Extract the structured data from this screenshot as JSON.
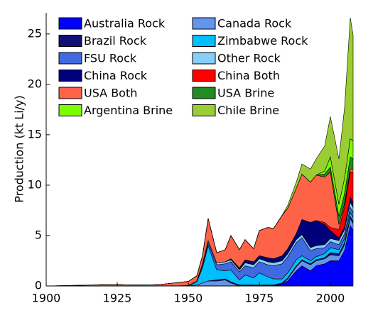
{
  "chart_data": {
    "type": "stacked-area",
    "y_label": "Production (kt Li/y)",
    "x": [
      1900,
      1917,
      1920,
      1925,
      1930,
      1935,
      1940,
      1945,
      1950,
      1953,
      1955,
      1957,
      1960,
      1963,
      1965,
      1968,
      1970,
      1973,
      1975,
      1978,
      1980,
      1983,
      1985,
      1988,
      1990,
      1993,
      1995,
      1998,
      2000,
      2003,
      2005,
      2007,
      2008
    ],
    "xlim": [
      1900,
      2008
    ],
    "xticks": [
      1900,
      1925,
      1950,
      1975,
      2000
    ],
    "ylim": [
      0,
      27.1
    ],
    "yticks": [
      0,
      5,
      10,
      15,
      20,
      25
    ],
    "legend": "upper-left",
    "series": [
      {
        "name": "Australia Rock",
        "color": "#0000ff",
        "values": [
          0,
          0,
          0,
          0,
          0,
          0,
          0,
          0,
          0,
          0,
          0,
          0,
          0,
          0,
          0,
          0,
          0,
          0,
          0,
          0,
          0,
          0.2,
          0.5,
          1.5,
          2.0,
          1.5,
          2.0,
          2.2,
          2.5,
          2.5,
          3.5,
          6.0,
          5.5
        ]
      },
      {
        "name": "Canada Rock",
        "color": "#6495ed",
        "values": [
          0,
          0,
          0,
          0,
          0,
          0,
          0,
          0,
          0,
          0.1,
          0.3,
          0.5,
          0.5,
          0.6,
          0.3,
          0,
          0,
          0,
          0,
          0,
          0,
          0,
          0.2,
          0.4,
          0.5,
          0.6,
          0.5,
          0.5,
          0.6,
          0.5,
          0.6,
          0.7,
          0.7
        ]
      },
      {
        "name": "Brazil Rock",
        "color": "#10107a",
        "values": [
          0,
          0,
          0,
          0,
          0,
          0,
          0,
          0,
          0,
          0,
          0,
          0,
          0.1,
          0.1,
          0.1,
          0.1,
          0.1,
          0.1,
          0.1,
          0.1,
          0.1,
          0.1,
          0.1,
          0.1,
          0.1,
          0.1,
          0.1,
          0.1,
          0.2,
          0.2,
          0.2,
          0.2,
          0.2
        ]
      },
      {
        "name": "Zimbabwe Rock",
        "color": "#00bfff",
        "values": [
          0,
          0,
          0,
          0,
          0,
          0,
          0,
          0,
          0,
          0.3,
          1.5,
          3.5,
          1.0,
          0.8,
          1.2,
          0.5,
          1.0,
          0.7,
          1.2,
          0.8,
          0.6,
          0.4,
          0.5,
          0.6,
          0.4,
          0.3,
          0.3,
          0.4,
          0.5,
          0.4,
          0.4,
          0.4,
          0.4
        ]
      },
      {
        "name": "FSU Rock",
        "color": "#4169e1",
        "values": [
          0,
          0,
          0,
          0,
          0,
          0,
          0,
          0,
          0,
          0,
          0.2,
          0.3,
          0.5,
          0.7,
          0.8,
          0.8,
          0.9,
          1.0,
          1.1,
          1.2,
          1.3,
          1.5,
          1.6,
          1.7,
          1.8,
          1.0,
          0.8,
          0.6,
          0.6,
          0.5,
          0.5,
          0.5,
          0.5
        ]
      },
      {
        "name": "Other Rock",
        "color": "#87cefa",
        "values": [
          0,
          0,
          0,
          0,
          0,
          0,
          0,
          0,
          0.05,
          0.1,
          0.2,
          0.2,
          0.2,
          0.2,
          0.2,
          0.2,
          0.3,
          0.3,
          0.3,
          0.3,
          0.3,
          0.3,
          0.3,
          0.3,
          0.3,
          0.3,
          0.3,
          0.3,
          0.3,
          0.4,
          0.4,
          0.5,
          0.5
        ]
      },
      {
        "name": "China Rock",
        "color": "#00007a",
        "values": [
          0,
          0,
          0,
          0,
          0,
          0,
          0,
          0,
          0,
          0,
          0,
          0,
          0,
          0,
          0.1,
          0.2,
          0.3,
          0.3,
          0.3,
          0.4,
          0.4,
          0.5,
          0.5,
          0.6,
          1.5,
          2.5,
          2.5,
          2.0,
          0.8,
          0.3,
          0.3,
          0.5,
          0.5
        ]
      },
      {
        "name": "China Both",
        "color": "#ff0000",
        "values": [
          0,
          0,
          0,
          0,
          0,
          0,
          0,
          0,
          0,
          0,
          0,
          0,
          0,
          0,
          0,
          0,
          0,
          0,
          0,
          0,
          0,
          0,
          0,
          0,
          0,
          0,
          0,
          0.2,
          0.3,
          0.8,
          2.0,
          2.5,
          3.0
        ]
      },
      {
        "name": "USA Both",
        "color": "#ff6347",
        "values": [
          0,
          0.1,
          0.15,
          0.15,
          0.1,
          0.1,
          0.15,
          0.3,
          0.4,
          0.5,
          0.8,
          2.2,
          1.0,
          1.2,
          2.3,
          1.8,
          2.0,
          1.3,
          2.5,
          3.0,
          3.0,
          4.0,
          4.0,
          4.5,
          4.5,
          4.0,
          4.5,
          4.5,
          5.5,
          0.5,
          0.3,
          0.3,
          0.3
        ]
      },
      {
        "name": "USA Brine",
        "color": "#228b22",
        "values": [
          0,
          0,
          0,
          0,
          0,
          0,
          0,
          0,
          0,
          0,
          0,
          0,
          0,
          0,
          0,
          0,
          0,
          0,
          0,
          0,
          0,
          0,
          0,
          0,
          0,
          0,
          0,
          0.3,
          0.5,
          0.8,
          1.0,
          1.2,
          1.0
        ]
      },
      {
        "name": "Argentina Brine",
        "color": "#7cfc00",
        "values": [
          0,
          0,
          0,
          0,
          0,
          0,
          0,
          0,
          0,
          0,
          0,
          0,
          0,
          0,
          0,
          0,
          0,
          0,
          0,
          0,
          0,
          0,
          0,
          0,
          0,
          0,
          0,
          0.3,
          1.0,
          1.2,
          1.5,
          1.8,
          1.8
        ]
      },
      {
        "name": "Chile Brine",
        "color": "#9acd32",
        "values": [
          0,
          0,
          0,
          0,
          0,
          0,
          0,
          0,
          0,
          0,
          0,
          0,
          0,
          0,
          0,
          0,
          0,
          0,
          0,
          0,
          0,
          0,
          0.3,
          0.6,
          1.0,
          1.3,
          1.6,
          2.5,
          4.0,
          4.5,
          7.0,
          12.0,
          10.5
        ]
      }
    ]
  }
}
